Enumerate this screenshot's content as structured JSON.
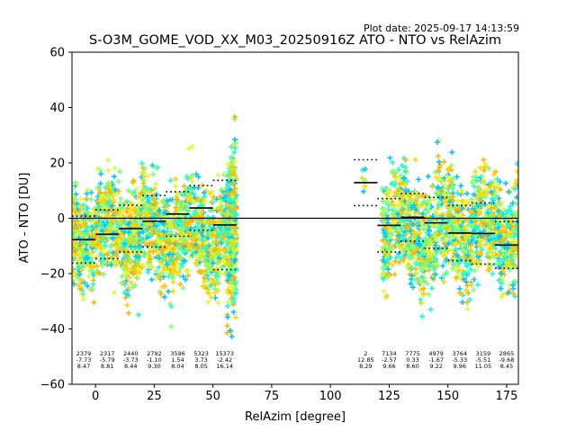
{
  "plot_date": "Plot date: 2025-09-17 14:13:59",
  "chart_data": {
    "type": "scatter",
    "title": "S-O3M_GOME_VOD_XX_M03_20250916Z ATO - NTO vs RelAzim",
    "xlabel": "RelAzim [degree]",
    "ylabel": "ATO - NTO [DU]",
    "xlim": [
      -10,
      180
    ],
    "ylim": [
      -60,
      60
    ],
    "xticks": [
      0,
      25,
      50,
      75,
      100,
      125,
      150,
      175
    ],
    "yticks": [
      -60,
      -40,
      -20,
      0,
      20,
      40,
      60
    ],
    "zero_line": 0,
    "colors": [
      "#00c8ff",
      "#19ffd7",
      "#7dff7a",
      "#d4ff3a",
      "#ffd400",
      "#ffb400"
    ],
    "bins": [
      {
        "x0": -10,
        "x1": 0,
        "count": "2379",
        "mean": "-7.73",
        "std": "8.47",
        "mean_v": -7.73,
        "std_v": 8.47
      },
      {
        "x0": 0,
        "x1": 10,
        "count": "2317",
        "mean": "-5.79",
        "std": "8.81",
        "mean_v": -5.79,
        "std_v": 8.81
      },
      {
        "x0": 10,
        "x1": 20,
        "count": "2440",
        "mean": "-3.73",
        "std": "8.44",
        "mean_v": -3.73,
        "std_v": 8.44
      },
      {
        "x0": 20,
        "x1": 30,
        "count": "2792",
        "mean": "-1.10",
        "std": "9.30",
        "mean_v": -1.1,
        "std_v": 9.3
      },
      {
        "x0": 30,
        "x1": 40,
        "count": "3596",
        "mean": "1.54",
        "std": "8.04",
        "mean_v": 1.54,
        "std_v": 8.04
      },
      {
        "x0": 40,
        "x1": 50,
        "count": "5323",
        "mean": "3.73",
        "std": "8.05",
        "mean_v": 3.73,
        "std_v": 8.05
      },
      {
        "x0": 50,
        "x1": 60,
        "count": "15373",
        "mean": "-2.42",
        "std": "16.14",
        "mean_v": -2.42,
        "std_v": 16.14
      },
      {
        "x0": 110,
        "x1": 120,
        "count": "2",
        "mean": "12.85",
        "std": "8.29",
        "mean_v": 12.85,
        "std_v": 8.29
      },
      {
        "x0": 120,
        "x1": 130,
        "count": "7134",
        "mean": "-2.57",
        "std": "9.66",
        "mean_v": -2.57,
        "std_v": 9.66
      },
      {
        "x0": 130,
        "x1": 140,
        "count": "7775",
        "mean": "0.33",
        "std": "8.60",
        "mean_v": 0.33,
        "std_v": 8.6
      },
      {
        "x0": 140,
        "x1": 150,
        "count": "4979",
        "mean": "-1.67",
        "std": "9.22",
        "mean_v": -1.67,
        "std_v": 9.22
      },
      {
        "x0": 150,
        "x1": 160,
        "count": "3764",
        "mean": "-5.33",
        "std": "9.96",
        "mean_v": -5.33,
        "std_v": 9.96
      },
      {
        "x0": 160,
        "x1": 170,
        "count": "3159",
        "mean": "-5.51",
        "std": "11.05",
        "mean_v": -5.51,
        "std_v": 11.05
      },
      {
        "x0": 170,
        "x1": 180,
        "count": "2865",
        "mean": "-9.68",
        "std": "8.45",
        "mean_v": -9.68,
        "std_v": 8.45
      }
    ],
    "scatter_clusters": [
      {
        "x_from": -10,
        "x_to": 59,
        "center": -5,
        "spread": 28
      },
      {
        "x_from": 56,
        "x_to": 60,
        "center": -10,
        "spread": 46
      },
      {
        "x_from": 113,
        "x_to": 115,
        "center": 13,
        "spread": 10
      },
      {
        "x_from": 122,
        "x_to": 180,
        "center": -4,
        "spread": 30
      }
    ]
  }
}
